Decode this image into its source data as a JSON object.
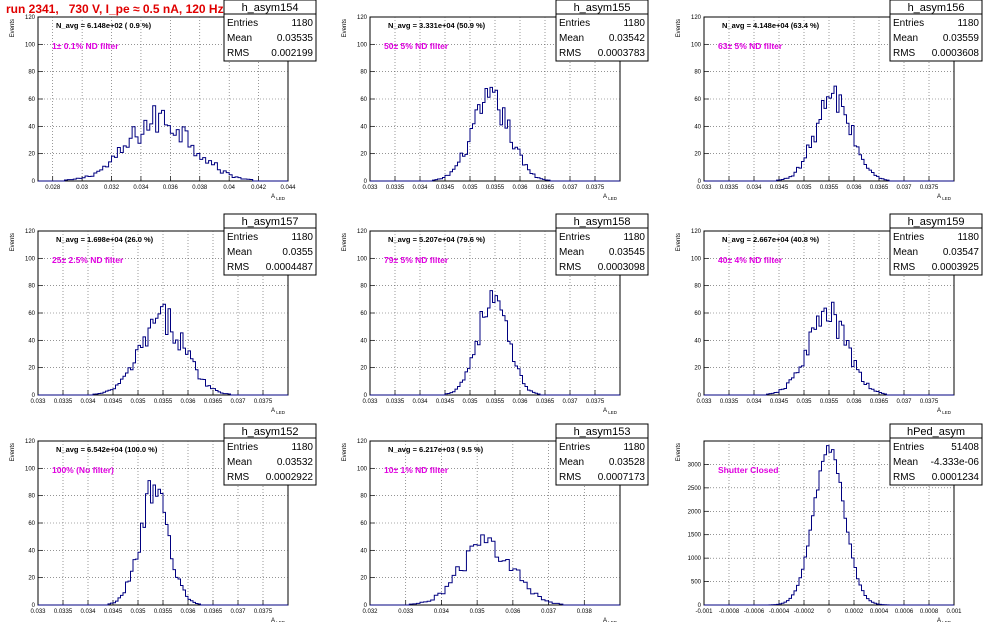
{
  "title": "run 2341,   730 V, I_pe ≈ 0.5 nA, 120 Hz",
  "chart_data": [
    {
      "type": "bar",
      "name": "h_asym154",
      "ylabel": "Events",
      "xlabel": "A_LED",
      "annotation": "N_avg = 6.148e+02 ( 0.9 %)",
      "filter_label": "1± 0.1% ND filter",
      "stats": {
        "entries": "1180",
        "mean": "0.03535",
        "rms": "0.002199"
      },
      "ylim": [
        0,
        120
      ],
      "yticks": [
        0,
        20,
        40,
        60,
        80,
        100,
        120
      ],
      "xlim": [
        0.027,
        0.044
      ],
      "xticks": [
        0.028,
        0.03,
        0.032,
        0.034,
        0.036,
        0.038,
        0.04,
        0.042,
        0.044
      ],
      "xtick_labels": [
        "0.028",
        "0.03",
        "0.032",
        "0.034",
        "0.036",
        "0.038",
        "0.04",
        "0.042",
        "0.044"
      ],
      "hist": {
        "mean": 0.03535,
        "sigma": 0.002199,
        "peak": 45,
        "bin_width": 0.0002,
        "noise": 0.28
      }
    },
    {
      "type": "bar",
      "name": "h_asym155",
      "ylabel": "Events",
      "xlabel": "A_LED",
      "annotation": "N_avg = 3.331e+04 (50.9 %)",
      "filter_label": "50± 5% ND filter",
      "stats": {
        "entries": "1180",
        "mean": "0.03542",
        "rms": "0.0003783"
      },
      "ylim": [
        0,
        120
      ],
      "yticks": [
        0,
        20,
        40,
        60,
        80,
        100,
        120
      ],
      "xlim": [
        0.033,
        0.038
      ],
      "xticks": [
        0.033,
        0.0335,
        0.034,
        0.0345,
        0.035,
        0.0355,
        0.036,
        0.0365,
        0.037,
        0.0375
      ],
      "xtick_labels": [
        "0.033",
        "0.0335",
        "0.034",
        "0.0345",
        "0.035",
        "0.0355",
        "0.036",
        "0.0365",
        "0.037",
        "0.0375"
      ],
      "hist": {
        "mean": 0.03542,
        "sigma": 0.0003783,
        "peak": 58,
        "bin_width": 5e-05,
        "noise": 0.22
      }
    },
    {
      "type": "bar",
      "name": "h_asym156",
      "ylabel": "Events",
      "xlabel": "A_LED",
      "annotation": "N_avg = 4.148e+04 (63.4 %)",
      "filter_label": "63± 5% ND filter",
      "stats": {
        "entries": "1180",
        "mean": "0.03559",
        "rms": "0.0003608"
      },
      "ylim": [
        0,
        120
      ],
      "yticks": [
        0,
        20,
        40,
        60,
        80,
        100,
        120
      ],
      "xlim": [
        0.033,
        0.038
      ],
      "xticks": [
        0.033,
        0.0335,
        0.034,
        0.0345,
        0.035,
        0.0355,
        0.036,
        0.0365,
        0.037,
        0.0375
      ],
      "xtick_labels": [
        "0.033",
        "0.0335",
        "0.034",
        "0.0345",
        "0.035",
        "0.0355",
        "0.036",
        "0.0365",
        "0.037",
        "0.0375"
      ],
      "hist": {
        "mean": 0.03559,
        "sigma": 0.0003608,
        "peak": 60,
        "bin_width": 5e-05,
        "noise": 0.22
      }
    },
    {
      "type": "bar",
      "name": "h_asym157",
      "ylabel": "Events",
      "xlabel": "A_LED",
      "annotation": "N_avg = 1.698e+04 (26.0 %)",
      "filter_label": "25± 2.5% ND filter",
      "stats": {
        "entries": "1180",
        "mean": "0.0355",
        "rms": "0.0004487"
      },
      "ylim": [
        0,
        120
      ],
      "yticks": [
        0,
        20,
        40,
        60,
        80,
        100,
        120
      ],
      "xlim": [
        0.033,
        0.038
      ],
      "xticks": [
        0.033,
        0.0335,
        0.034,
        0.0345,
        0.035,
        0.0355,
        0.036,
        0.0365,
        0.037,
        0.0375
      ],
      "xtick_labels": [
        "0.033",
        "0.0335",
        "0.034",
        "0.0345",
        "0.035",
        "0.0355",
        "0.036",
        "0.0365",
        "0.037",
        "0.0375"
      ],
      "hist": {
        "mean": 0.0355,
        "sigma": 0.0004487,
        "peak": 55,
        "bin_width": 5e-05,
        "noise": 0.22
      }
    },
    {
      "type": "bar",
      "name": "h_asym158",
      "ylabel": "Events",
      "xlabel": "A_LED",
      "annotation": "N_avg = 5.207e+04 (79.6 %)",
      "filter_label": "79± 5% ND filter",
      "stats": {
        "entries": "1180",
        "mean": "0.03545",
        "rms": "0.0003098"
      },
      "ylim": [
        0,
        120
      ],
      "yticks": [
        0,
        20,
        40,
        60,
        80,
        100,
        120
      ],
      "xlim": [
        0.033,
        0.038
      ],
      "xticks": [
        0.033,
        0.0335,
        0.034,
        0.0345,
        0.035,
        0.0355,
        0.036,
        0.0365,
        0.037,
        0.0375
      ],
      "xtick_labels": [
        "0.033",
        "0.0335",
        "0.034",
        "0.0345",
        "0.035",
        "0.0355",
        "0.036",
        "0.0365",
        "0.037",
        "0.0375"
      ],
      "hist": {
        "mean": 0.03545,
        "sigma": 0.0003098,
        "peak": 68,
        "bin_width": 5e-05,
        "noise": 0.2
      }
    },
    {
      "type": "bar",
      "name": "h_asym159",
      "ylabel": "Events",
      "xlabel": "A_LED",
      "annotation": "N_avg = 2.667e+04 (40.8 %)",
      "filter_label": "40± 4% ND filter",
      "stats": {
        "entries": "1180",
        "mean": "0.03547",
        "rms": "0.0003925"
      },
      "ylim": [
        0,
        120
      ],
      "yticks": [
        0,
        20,
        40,
        60,
        80,
        100,
        120
      ],
      "xlim": [
        0.033,
        0.038
      ],
      "xticks": [
        0.033,
        0.0335,
        0.034,
        0.0345,
        0.035,
        0.0355,
        0.036,
        0.0365,
        0.037,
        0.0375
      ],
      "xtick_labels": [
        "0.033",
        "0.0335",
        "0.034",
        "0.0345",
        "0.035",
        "0.0355",
        "0.036",
        "0.0365",
        "0.037",
        "0.0375"
      ],
      "hist": {
        "mean": 0.03547,
        "sigma": 0.0003925,
        "peak": 58,
        "bin_width": 5e-05,
        "noise": 0.22
      }
    },
    {
      "type": "bar",
      "name": "h_asym152",
      "ylabel": "Events",
      "xlabel": "A_LED",
      "annotation": "N_avg = 6.542e+04 (100.0 %)",
      "filter_label": "100% (No filter)",
      "stats": {
        "entries": "1180",
        "mean": "0.03532",
        "rms": "0.0002922"
      },
      "ylim": [
        0,
        120
      ],
      "yticks": [
        0,
        20,
        40,
        60,
        80,
        100,
        120
      ],
      "xlim": [
        0.033,
        0.038
      ],
      "xticks": [
        0.033,
        0.0335,
        0.034,
        0.0345,
        0.035,
        0.0355,
        0.036,
        0.0365,
        0.037,
        0.0375
      ],
      "xtick_labels": [
        "0.033",
        "0.0335",
        "0.034",
        "0.0345",
        "0.035",
        "0.0355",
        "0.036",
        "0.0365",
        "0.037",
        "0.0375"
      ],
      "hist": {
        "mean": 0.03532,
        "sigma": 0.0002922,
        "peak": 80,
        "bin_width": 5e-05,
        "noise": 0.2
      }
    },
    {
      "type": "bar",
      "name": "h_asym153",
      "ylabel": "Events",
      "xlabel": "A_LED",
      "annotation": "N_avg = 6.217e+03 ( 9.5 %)",
      "filter_label": "10± 1% ND filter",
      "stats": {
        "entries": "1180",
        "mean": "0.03528",
        "rms": "0.0007173"
      },
      "ylim": [
        0,
        120
      ],
      "yticks": [
        0,
        20,
        40,
        60,
        80,
        100,
        120
      ],
      "xlim": [
        0.032,
        0.039
      ],
      "xticks": [
        0.032,
        0.033,
        0.034,
        0.035,
        0.036,
        0.037,
        0.038
      ],
      "xtick_labels": [
        "0.032",
        "0.033",
        "0.034",
        "0.035",
        "0.036",
        "0.037",
        "0.038"
      ],
      "hist": {
        "mean": 0.03528,
        "sigma": 0.0007173,
        "peak": 45,
        "bin_width": 0.0001,
        "noise": 0.22
      }
    },
    {
      "type": "bar",
      "name": "hPed_asym",
      "ylabel": "Events",
      "xlabel": "A_LED",
      "annotation": "",
      "filter_label": "Shutter Closed",
      "stats": {
        "entries": "51408",
        "mean": "-4.333e-06",
        "rms": "0.0001234"
      },
      "ylim": [
        0,
        3500
      ],
      "yticks": [
        0,
        500,
        1000,
        1500,
        2000,
        2500,
        3000
      ],
      "xlim": [
        -0.001,
        0.001
      ],
      "xticks": [
        -0.001,
        -0.0008,
        -0.0006,
        -0.0004,
        -0.0002,
        0,
        0.0002,
        0.0004,
        0.0006,
        0.0008,
        0.001
      ],
      "xtick_labels": [
        "-0.001",
        "-0.0008",
        "-0.0006",
        "-0.0004",
        "-0.0002",
        "0",
        "0.0002",
        "0.0004",
        "0.0006",
        "0.0008",
        "0.001"
      ],
      "hist": {
        "mean": 0.0,
        "sigma": 0.0001234,
        "peak": 3300,
        "bin_width": 2e-05,
        "noise": 0.04
      }
    }
  ],
  "labels": {
    "entries": "Entries",
    "mean": "Mean",
    "rms": "RMS"
  },
  "colors": {
    "title": "#e00000",
    "filter_label": "#e000e0",
    "histogram": "#000080",
    "grid": "#555555"
  }
}
